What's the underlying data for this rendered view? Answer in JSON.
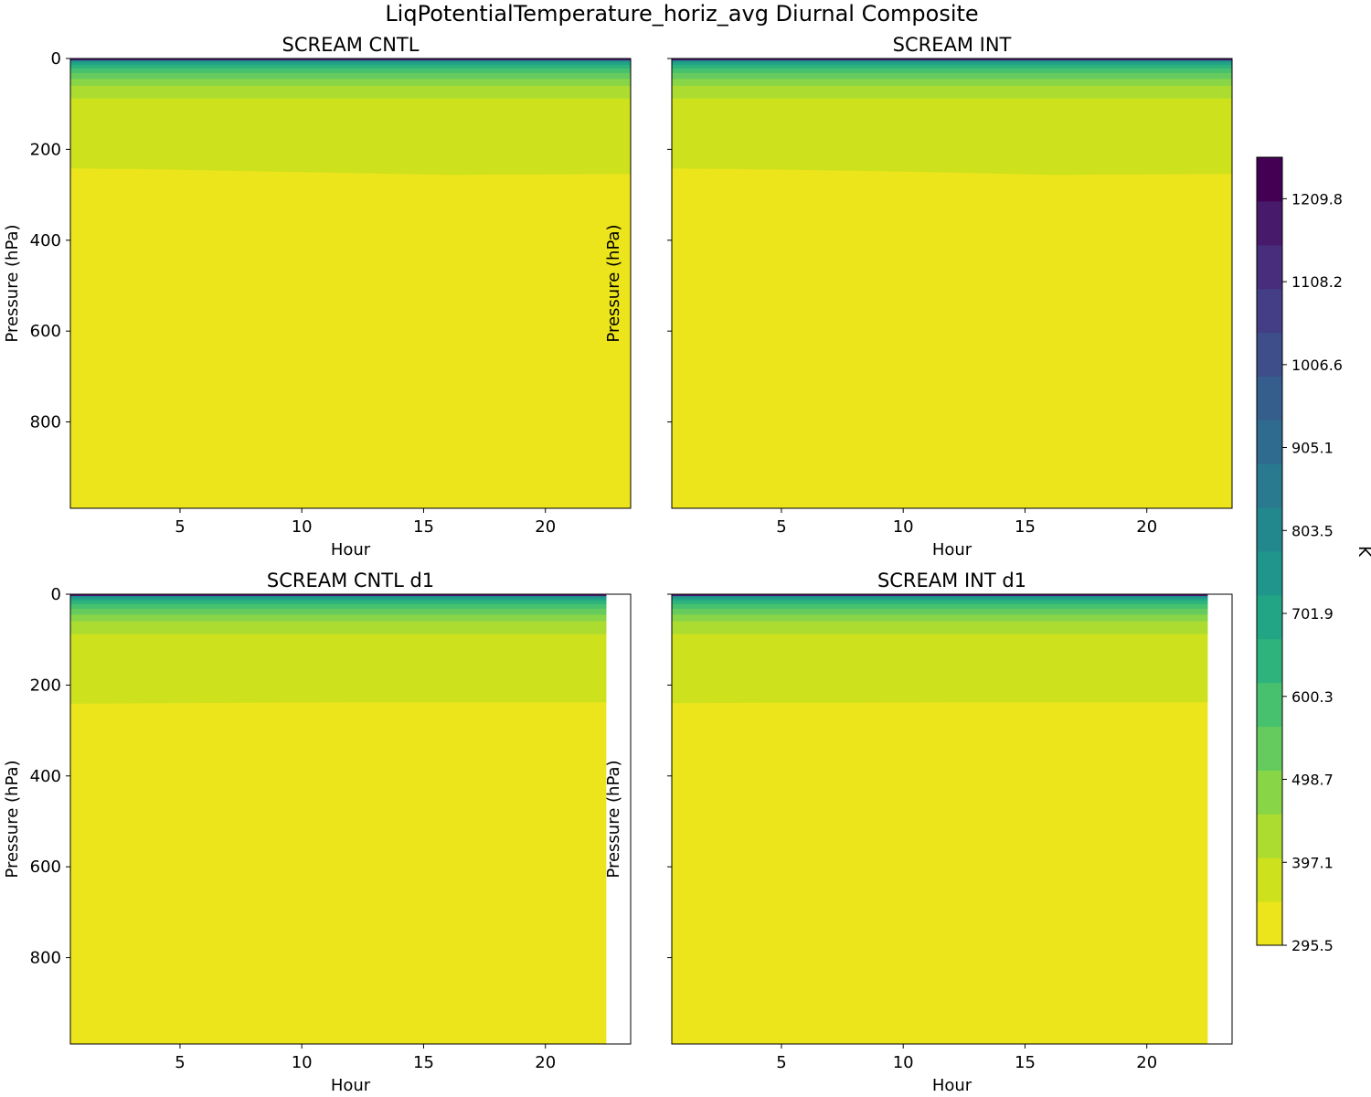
{
  "figure": {
    "title": "LiqPotentialTemperature_horiz_avg Diurnal Composite"
  },
  "chart_data": {
    "type": "contourf",
    "suptitle": "LiqPotentialTemperature_horiz_avg Diurnal Composite",
    "colorbar": {
      "label": "K",
      "colormap": "viridis_r",
      "range": [
        295.5,
        1260.6
      ],
      "ticks": [
        295.5,
        397.1,
        498.7,
        600.3,
        701.9,
        803.5,
        905.1,
        1006.6,
        1108.2,
        1209.8
      ],
      "colors": [
        "#ece51b",
        "#cde11d",
        "#addc30",
        "#89d548",
        "#65cb5e",
        "#48c16e",
        "#2eb37c",
        "#21a585",
        "#1f958b",
        "#23888e",
        "#297a8e",
        "#2e6b8e",
        "#355e8d",
        "#3d4e8a",
        "#433e85",
        "#472d7b",
        "#481a6c",
        "#440154"
      ]
    },
    "panels": [
      {
        "title": "SCREAM CNTL",
        "xlabel": "Hour",
        "ylabel": "Pressure (hPa)",
        "xlim": [
          0.5,
          23.5
        ],
        "ylim": [
          990,
          0
        ],
        "xticks": [
          5,
          10,
          15,
          20
        ],
        "yticks": [
          0,
          200,
          400,
          600,
          800
        ],
        "show_ytick_labels": true,
        "data_xmax": 23.5,
        "layer_boundaries_hPa": [
          88,
          60,
          45,
          32,
          22,
          14,
          9,
          6,
          4,
          2.5
        ],
        "major_boundary_hPa": {
          "x": [
            0.5,
            4,
            8,
            12,
            16,
            20,
            23.5
          ],
          "p": [
            242,
            244,
            248,
            252,
            256,
            255,
            254
          ]
        }
      },
      {
        "title": "SCREAM INT",
        "xlabel": "Hour",
        "ylabel": "Pressure (hPa)",
        "xlim": [
          0.5,
          23.5
        ],
        "ylim": [
          990,
          0
        ],
        "xticks": [
          5,
          10,
          15,
          20
        ],
        "yticks": [
          0,
          200,
          400,
          600,
          800
        ],
        "show_ytick_labels": false,
        "data_xmax": 23.5,
        "layer_boundaries_hPa": [
          88,
          60,
          45,
          32,
          22,
          14,
          9,
          6,
          4,
          2.5
        ],
        "major_boundary_hPa": {
          "x": [
            0.5,
            4,
            8,
            12,
            16,
            20,
            23.5
          ],
          "p": [
            242,
            244,
            247,
            251,
            256,
            255,
            254
          ]
        }
      },
      {
        "title": "SCREAM CNTL d1",
        "xlabel": "Hour",
        "ylabel": "Pressure (hPa)",
        "xlim": [
          0.5,
          23.5
        ],
        "ylim": [
          990,
          0
        ],
        "xticks": [
          5,
          10,
          15,
          20
        ],
        "yticks": [
          0,
          200,
          400,
          600,
          800
        ],
        "show_ytick_labels": true,
        "data_xmax": 22.5,
        "layer_boundaries_hPa": [
          88,
          60,
          45,
          32,
          22,
          14,
          9,
          6,
          4,
          2.5
        ],
        "major_boundary_hPa": {
          "x": [
            0.5,
            4,
            8,
            12,
            16,
            20,
            22.5
          ],
          "p": [
            241,
            240,
            239,
            238,
            238,
            238,
            238
          ]
        }
      },
      {
        "title": "SCREAM INT d1",
        "xlabel": "Hour",
        "ylabel": "Pressure (hPa)",
        "xlim": [
          0.5,
          23.5
        ],
        "ylim": [
          990,
          0
        ],
        "xticks": [
          5,
          10,
          15,
          20
        ],
        "yticks": [
          0,
          200,
          400,
          600,
          800
        ],
        "show_ytick_labels": false,
        "data_xmax": 22.5,
        "layer_boundaries_hPa": [
          88,
          60,
          45,
          32,
          22,
          14,
          9,
          6,
          4,
          2.5
        ],
        "major_boundary_hPa": {
          "x": [
            0.5,
            4,
            8,
            12,
            16,
            20,
            22.5
          ],
          "p": [
            240,
            239,
            239,
            238,
            238,
            238,
            238
          ]
        }
      }
    ]
  }
}
